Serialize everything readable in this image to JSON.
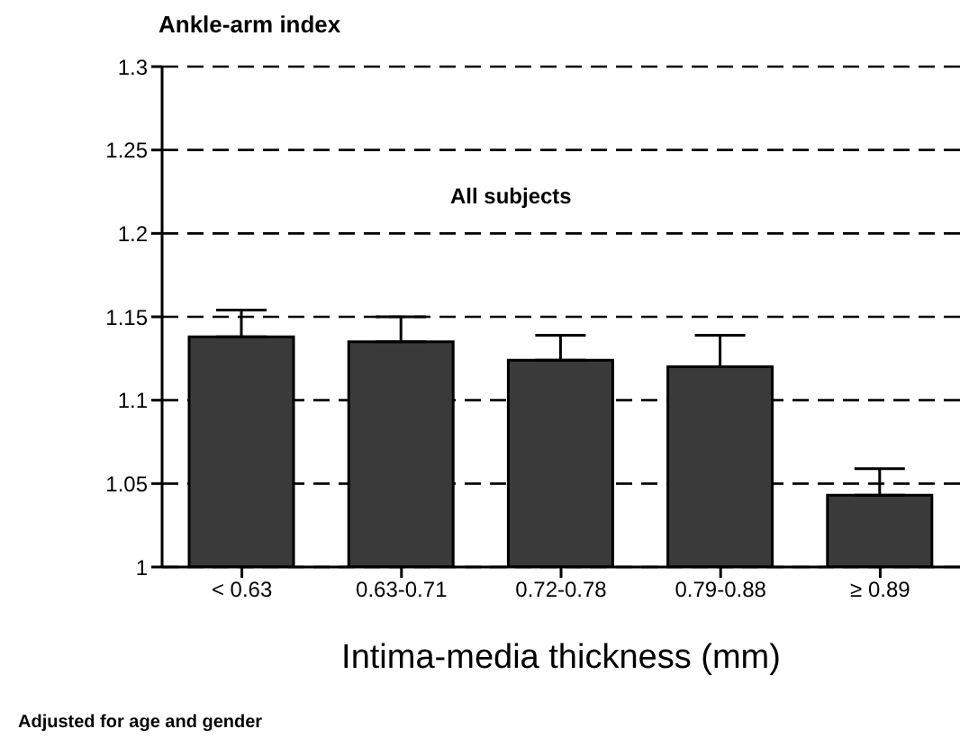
{
  "chart_data": {
    "type": "bar",
    "ylabel": "Ankle-arm index",
    "xlabel": "Intima-media thickness (mm)",
    "categories": [
      "< 0.63",
      "0.63-0.71",
      "0.72-0.78",
      "0.79-0.88",
      "≥ 0.89"
    ],
    "values": [
      1.138,
      1.135,
      1.124,
      1.12,
      1.043
    ],
    "errors": [
      [
        1.138,
        1.154
      ],
      [
        1.135,
        1.15
      ],
      [
        1.124,
        1.139
      ],
      [
        1.12,
        1.139
      ],
      [
        1.043,
        1.059
      ]
    ],
    "color": "#3a3a3a",
    "ylim": [
      1,
      1.3
    ],
    "yticks": [
      1,
      1.05,
      1.1,
      1.15,
      1.2,
      1.25,
      1.3
    ],
    "grid": "y",
    "legend": false,
    "annotations": [
      "All subjects",
      "Adjusted for age and gender"
    ]
  }
}
